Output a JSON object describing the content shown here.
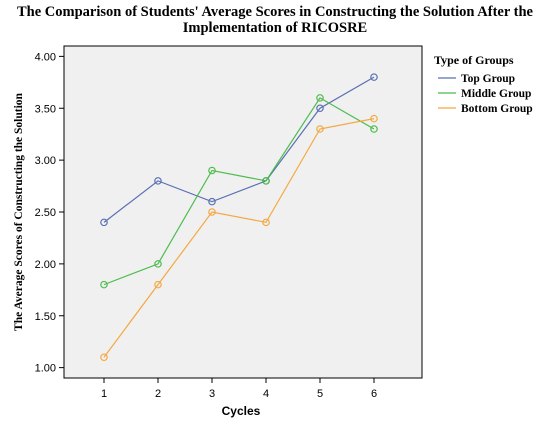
{
  "chart_data": {
    "type": "line",
    "title": "The Comparison of Students' Average Scores in Constructing the Solution After the Implementation of RICOSRE",
    "xlabel": "Cycles",
    "ylabel": "The Average Scores of Constructing the Solution",
    "categories": [
      "1",
      "2",
      "3",
      "4",
      "5",
      "6"
    ],
    "yticks": [
      "1.00",
      "1.50",
      "2.00",
      "2.50",
      "3.00",
      "3.50",
      "4.00"
    ],
    "ylim": [
      0.9,
      4.1
    ],
    "grid": false,
    "legend_title": "Type of Groups",
    "legend_position": "right",
    "series": [
      {
        "name": "Top Group",
        "color": "#5a6fb3",
        "values": [
          2.4,
          2.8,
          2.6,
          2.8,
          3.5,
          3.8
        ]
      },
      {
        "name": "Middle Group",
        "color": "#4cbc4c",
        "values": [
          1.8,
          2.0,
          2.9,
          2.8,
          3.6,
          3.3
        ]
      },
      {
        "name": "Bottom Group",
        "color": "#f5a841",
        "values": [
          1.1,
          1.8,
          2.5,
          2.4,
          3.3,
          3.4
        ]
      }
    ]
  }
}
